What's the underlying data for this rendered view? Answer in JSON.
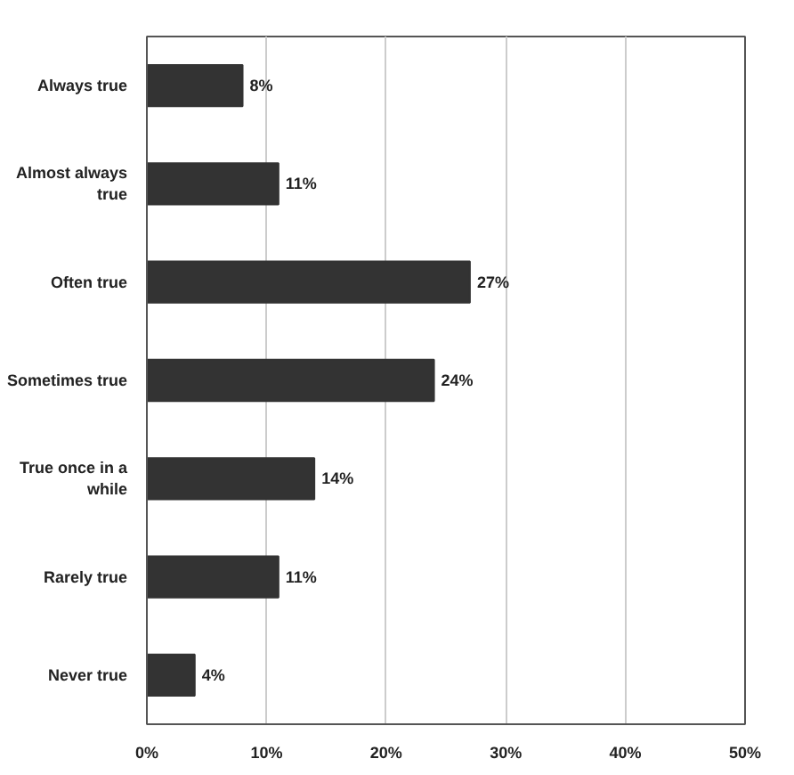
{
  "chart_data": {
    "type": "bar",
    "orientation": "horizontal",
    "categories": [
      "Always true",
      "Almost always true",
      "Often true",
      "Sometimes true",
      "True once in a while",
      "Rarely true",
      "Never true"
    ],
    "values": [
      8,
      11,
      27,
      24,
      14,
      11,
      4
    ],
    "value_labels": [
      "8%",
      "11%",
      "27%",
      "24%",
      "14%",
      "11%",
      "4%"
    ],
    "color": "#333333",
    "xlim": [
      0,
      50
    ],
    "xticks": [
      {
        "value": 0,
        "label": "0%"
      },
      {
        "value": 10,
        "label": "10%"
      },
      {
        "value": 20,
        "label": "20%"
      },
      {
        "value": 30,
        "label": "30%"
      },
      {
        "value": 40,
        "label": "40%"
      },
      {
        "value": 50,
        "label": "50%"
      }
    ],
    "grid": "x"
  }
}
